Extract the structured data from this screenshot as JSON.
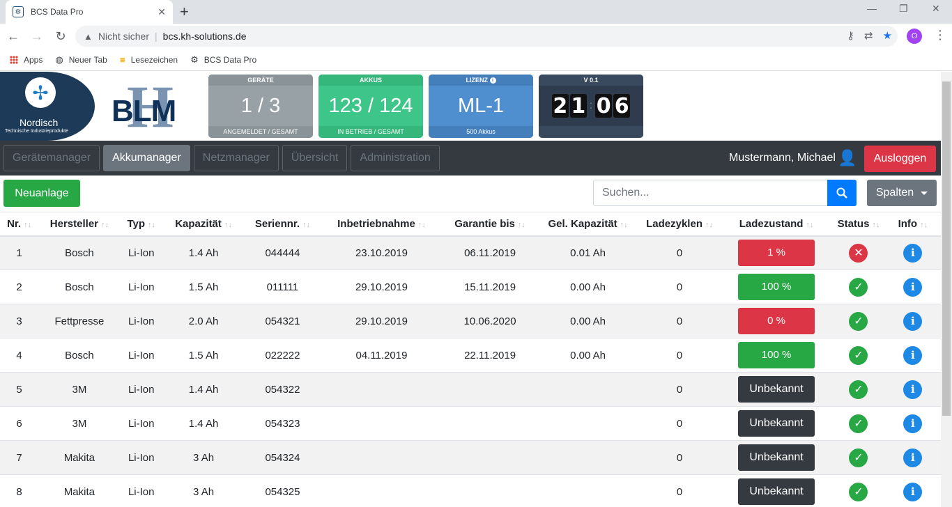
{
  "browser": {
    "tab_title": "BCS Data Pro",
    "not_secure": "Nicht sicher",
    "url": "bcs.kh-solutions.de",
    "profile_initial": "O",
    "bookmarks": [
      "Apps",
      "Neuer Tab",
      "Lesezeichen",
      "BCS Data Pro"
    ]
  },
  "header": {
    "company_name": "Nordisch",
    "company_sub": "Technische Industrieprodukte",
    "product_logo": "BLM",
    "cards": {
      "geraete": {
        "title": "GERÄTE",
        "value": "1 / 3",
        "footer": "ANGEMELDET / GESAMT"
      },
      "akkus": {
        "title": "AKKUS",
        "value": "123 / 124",
        "footer": "IN BETRIEB / GESAMT"
      },
      "lizenz": {
        "title": "LIZENZ",
        "value": "ML-1",
        "footer": "500 Akkus"
      },
      "version": {
        "title": "V 0.1",
        "clock": [
          "2",
          "1",
          "0",
          "6"
        ]
      }
    }
  },
  "nav": {
    "tabs": [
      "Gerätemanager",
      "Akkumanager",
      "Netzmanager",
      "Übersicht",
      "Administration"
    ],
    "active": 1,
    "user": "Mustermann, Michael",
    "logout": "Ausloggen"
  },
  "actions": {
    "new_label": "Neuanlage",
    "search_placeholder": "Suchen...",
    "columns_label": "Spalten"
  },
  "table": {
    "headers": [
      "Nr.",
      "Hersteller",
      "Typ",
      "Kapazität",
      "Seriennr.",
      "Inbetriebnahme",
      "Garantie bis",
      "Gel. Kapazität",
      "Ladezyklen",
      "Ladezustand",
      "Status",
      "Info"
    ],
    "rows": [
      {
        "nr": "1",
        "hersteller": "Bosch",
        "typ": "Li-Ion",
        "kapazitaet": "1.4 Ah",
        "seriennr": "044444",
        "inbetrieb": "23.10.2019",
        "garantie": "06.11.2019",
        "gel": "0.01 Ah",
        "zyklen": "0",
        "ladezustand": "1 %",
        "lz_color": "red",
        "status": "error"
      },
      {
        "nr": "2",
        "hersteller": "Bosch",
        "typ": "Li-Ion",
        "kapazitaet": "1.5 Ah",
        "seriennr": "011111",
        "inbetrieb": "29.10.2019",
        "garantie": "15.11.2019",
        "gel": "0.00 Ah",
        "zyklen": "0",
        "ladezustand": "100 %",
        "lz_color": "green",
        "status": "ok"
      },
      {
        "nr": "3",
        "hersteller": "Fettpresse",
        "typ": "Li-Ion",
        "kapazitaet": "2.0 Ah",
        "seriennr": "054321",
        "inbetrieb": "29.10.2019",
        "garantie": "10.06.2020",
        "gel": "0.00 Ah",
        "zyklen": "0",
        "ladezustand": "0 %",
        "lz_color": "red",
        "status": "ok"
      },
      {
        "nr": "4",
        "hersteller": "Bosch",
        "typ": "Li-Ion",
        "kapazitaet": "1.5 Ah",
        "seriennr": "022222",
        "inbetrieb": "04.11.2019",
        "garantie": "22.11.2019",
        "gel": "0.00 Ah",
        "zyklen": "0",
        "ladezustand": "100 %",
        "lz_color": "green",
        "status": "ok"
      },
      {
        "nr": "5",
        "hersteller": "3M",
        "typ": "Li-Ion",
        "kapazitaet": "1.4 Ah",
        "seriennr": "054322",
        "inbetrieb": "",
        "garantie": "",
        "gel": "",
        "zyklen": "0",
        "ladezustand": "Unbekannt",
        "lz_color": "dark",
        "status": "ok"
      },
      {
        "nr": "6",
        "hersteller": "3M",
        "typ": "Li-Ion",
        "kapazitaet": "1.4 Ah",
        "seriennr": "054323",
        "inbetrieb": "",
        "garantie": "",
        "gel": "",
        "zyklen": "0",
        "ladezustand": "Unbekannt",
        "lz_color": "dark",
        "status": "ok"
      },
      {
        "nr": "7",
        "hersteller": "Makita",
        "typ": "Li-Ion",
        "kapazitaet": "3 Ah",
        "seriennr": "054324",
        "inbetrieb": "",
        "garantie": "",
        "gel": "",
        "zyklen": "0",
        "ladezustand": "Unbekannt",
        "lz_color": "dark",
        "status": "ok"
      },
      {
        "nr": "8",
        "hersteller": "Makita",
        "typ": "Li-Ion",
        "kapazitaet": "3 Ah",
        "seriennr": "054325",
        "inbetrieb": "",
        "garantie": "",
        "gel": "",
        "zyklen": "0",
        "ladezustand": "Unbekannt",
        "lz_color": "dark",
        "status": "ok"
      }
    ]
  }
}
